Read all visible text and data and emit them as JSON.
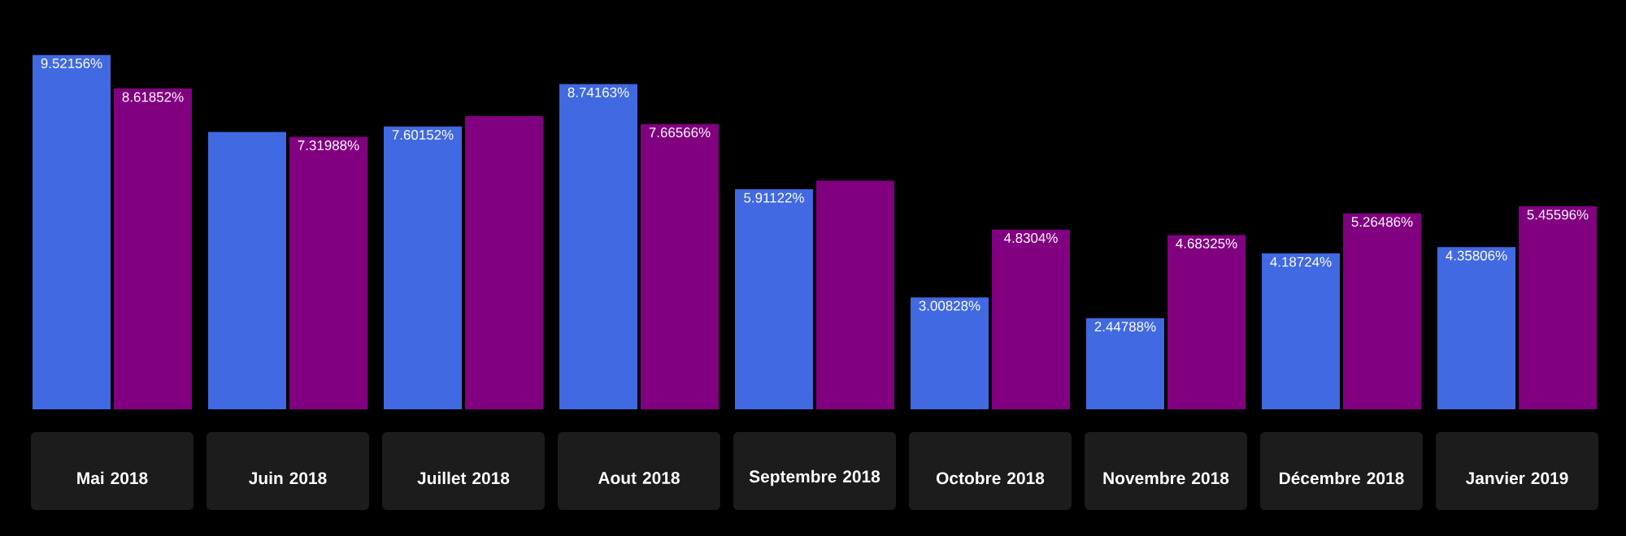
{
  "chart_data": {
    "type": "bar",
    "categories": [
      "Mai 2018",
      "Juin 2018",
      "Juillet 2018",
      "Aout 2018",
      "Septembre 2018",
      "Octobre 2018",
      "Novembre 2018",
      "Décembre 2018",
      "Janvier 2019"
    ],
    "series": [
      {
        "color": "#4169e1",
        "values": [
          9.52156,
          7.45,
          7.60152,
          8.74163,
          5.91122,
          3.00828,
          2.44788,
          4.18724,
          4.35806
        ],
        "value_labels": [
          "9.52156%",
          null,
          "7.60152%",
          "8.74163%",
          "5.91122%",
          "3.00828%",
          "2.44788%",
          "4.18724%",
          "4.35806%"
        ]
      },
      {
        "color": "#800080",
        "values": [
          8.61852,
          7.31988,
          7.88,
          7.66566,
          6.14,
          4.8304,
          4.68325,
          5.26486,
          5.45596
        ],
        "value_labels": [
          "8.61852%",
          "7.31988%",
          null,
          "7.66566%",
          null,
          "4.8304%",
          "4.68325%",
          "5.26486%",
          "5.45596%"
        ]
      }
    ]
  }
}
